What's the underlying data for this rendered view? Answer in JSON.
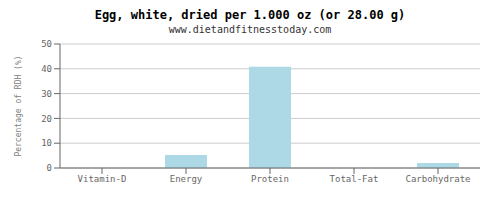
{
  "chart_data": {
    "type": "bar",
    "title": "Egg, white, dried per 1.000 oz (or 28.00 g)",
    "subtitle": "www.dietandfitnesstoday.com",
    "categories": [
      "Vitamin-D",
      "Energy",
      "Protein",
      "Total-Fat",
      "Carbohydrate"
    ],
    "values": [
      0,
      5.2,
      40.8,
      0,
      2.0
    ],
    "color": "#add8e6",
    "ylabel": "Percentage of RDH (%)",
    "ylim": [
      0,
      50
    ],
    "yticks": [
      0,
      10,
      20,
      30,
      40,
      50
    ],
    "grid": true
  }
}
